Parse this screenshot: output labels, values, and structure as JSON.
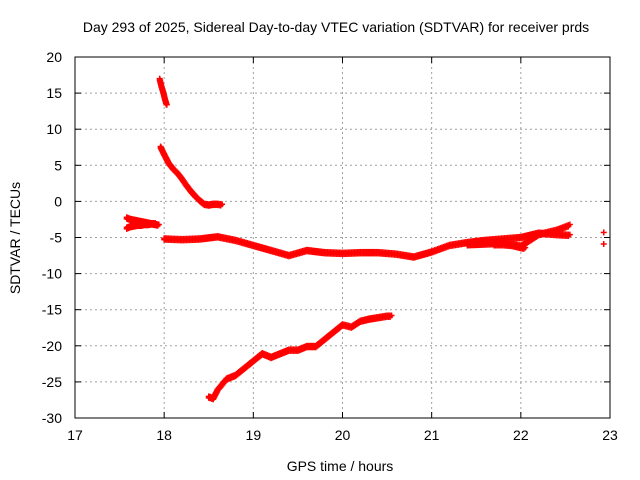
{
  "chart_data": {
    "type": "scatter",
    "title": "Day 293 of 2025, Sidereal Day-to-day VTEC variation (SDTVAR) for receiver prds",
    "xlabel": "GPS time / hours",
    "ylabel": "SDTVAR / TECUs",
    "xlim": [
      17,
      23
    ],
    "ylim": [
      -30,
      20
    ],
    "x_ticks": [
      17,
      18,
      19,
      20,
      21,
      22,
      23
    ],
    "y_ticks": [
      -30,
      -25,
      -20,
      -15,
      -10,
      -5,
      0,
      5,
      10,
      15,
      20
    ],
    "grid": true,
    "marker": "+",
    "color": "#ff0000",
    "series": [
      {
        "name": "arc-short-early",
        "x": [
          17.58,
          17.62,
          17.66,
          17.7,
          17.74,
          17.78,
          17.82,
          17.86,
          17.9,
          17.94
        ],
        "y": [
          -2.2,
          -2.4,
          -2.5,
          -2.6,
          -2.7,
          -2.8,
          -2.9,
          -3.0,
          -3.1,
          -3.2
        ]
      },
      {
        "name": "arc-short-early-lower",
        "x": [
          17.58,
          17.62,
          17.66,
          17.7,
          17.74,
          17.78,
          17.82,
          17.86,
          17.9
        ],
        "y": [
          -3.6,
          -3.4,
          -3.3,
          -3.2,
          -3.2,
          -3.1,
          -3.1,
          -3.0,
          -3.0
        ]
      },
      {
        "name": "arc-high",
        "x": [
          17.95,
          17.97,
          17.99,
          18.01,
          18.03
        ],
        "y": [
          17.0,
          16.0,
          15.2,
          14.2,
          13.4
        ]
      },
      {
        "name": "arc-descending",
        "x": [
          17.96,
          18.0,
          18.05,
          18.1,
          18.15,
          18.2,
          18.25,
          18.3,
          18.35,
          18.4,
          18.45,
          18.5,
          18.55,
          18.6,
          18.65
        ],
        "y": [
          7.6,
          6.6,
          5.4,
          4.6,
          4.0,
          3.2,
          2.3,
          1.5,
          0.8,
          0.2,
          -0.3,
          -0.4,
          -0.3,
          -0.3,
          -0.4
        ]
      },
      {
        "name": "arc-long-middle",
        "x": [
          18.0,
          18.2,
          18.4,
          18.6,
          18.8,
          19.0,
          19.2,
          19.4,
          19.6,
          19.8,
          20.0,
          20.2,
          20.4,
          20.6,
          20.8,
          21.0,
          21.2,
          21.4,
          21.6,
          21.8,
          22.0,
          22.2,
          22.4,
          22.55
        ],
        "y": [
          -5.1,
          -5.2,
          -5.1,
          -4.8,
          -5.3,
          -6.0,
          -6.7,
          -7.4,
          -6.7,
          -7.0,
          -7.1,
          -7.0,
          -7.0,
          -7.2,
          -7.6,
          -6.9,
          -6.0,
          -5.6,
          -5.3,
          -5.1,
          -4.9,
          -4.3,
          -4.5,
          -4.6
        ]
      },
      {
        "name": "arc-lower-rising",
        "x": [
          18.5,
          18.55,
          18.6,
          18.7,
          18.8,
          18.9,
          19.0,
          19.1,
          19.2,
          19.3,
          19.4,
          19.5,
          19.6,
          19.7,
          19.8,
          19.9,
          20.0,
          20.1,
          20.2,
          20.3,
          20.4,
          20.5,
          20.55
        ],
        "y": [
          -27.0,
          -27.2,
          -26.0,
          -24.5,
          -24.0,
          -23.0,
          -22.0,
          -21.0,
          -21.5,
          -21.0,
          -20.5,
          -20.5,
          -20.0,
          -20.0,
          -19.0,
          -18.0,
          -17.0,
          -17.3,
          -16.5,
          -16.2,
          -16.0,
          -15.8,
          -15.8
        ]
      },
      {
        "name": "arc-late-upper",
        "x": [
          21.4,
          21.6,
          21.8,
          22.0,
          22.2,
          22.4,
          22.55
        ],
        "y": [
          -5.9,
          -5.8,
          -5.7,
          -6.1,
          -4.5,
          -3.9,
          -3.2
        ]
      },
      {
        "name": "arc-late-lower",
        "x": [
          21.7,
          21.8,
          21.9,
          22.0,
          22.05
        ],
        "y": [
          -5.9,
          -5.9,
          -6.0,
          -6.3,
          -6.4
        ]
      },
      {
        "name": "points-end",
        "x": [
          22.93,
          22.93
        ],
        "y": [
          -4.3,
          -5.9
        ]
      }
    ]
  }
}
